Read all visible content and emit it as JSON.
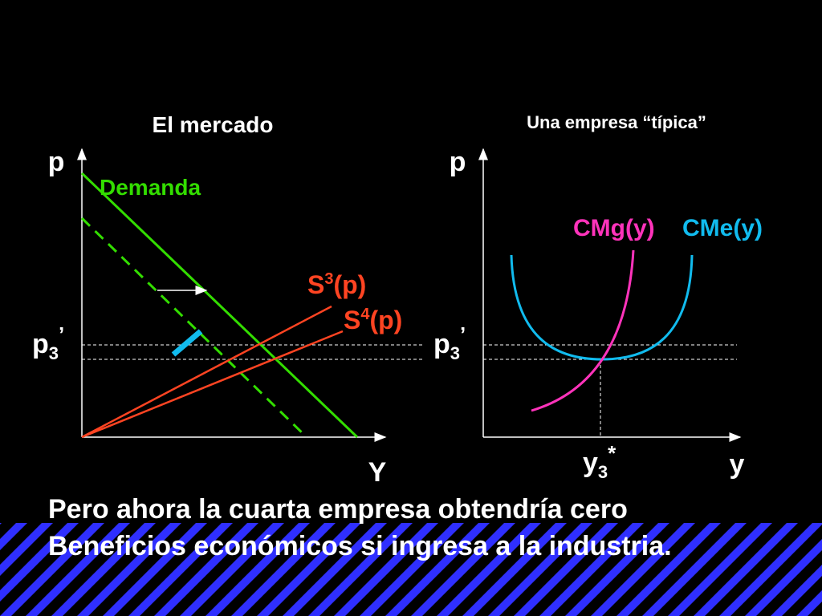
{
  "colors": {
    "background": "#000000",
    "stripe_light": "#2f2fff",
    "stripe_dark": "#000000",
    "demand": "#33dd00",
    "supply": "#ff4422",
    "cmg": "#ff33bb",
    "cme": "#11bbee",
    "shift_mark": "#11bbee",
    "text": "#ffffff"
  },
  "chart_data": [
    {
      "type": "line",
      "title": "El mercado",
      "ylabel": "p",
      "xlabel": "Y",
      "grid": false,
      "price_labels": {
        "base": "p",
        "sub": "3",
        "sup": "’"
      },
      "series": [
        {
          "name": "Demanda",
          "style": "solid",
          "color": "#33dd00"
        },
        {
          "name": "",
          "style": "dashed",
          "color": "#33dd00"
        },
        {
          "name": "S3(p)",
          "label": {
            "base": "S",
            "sup": "3",
            "rest": "(p)"
          },
          "color": "#ff4422"
        },
        {
          "name": "S4(p)",
          "label": {
            "base": "S",
            "sup": "4",
            "rest": "(p)"
          },
          "color": "#ff4422"
        }
      ],
      "annotations": [
        "shift-arrow",
        "shift-marker"
      ]
    },
    {
      "type": "line",
      "title": "Una empresa “típica”",
      "ylabel": "p",
      "xlabel": "y",
      "grid": false,
      "price_labels": {
        "base": "p",
        "sub": "3",
        "sup": "’"
      },
      "quantity_label": {
        "base": "y",
        "sub": "3",
        "sup": "*"
      },
      "series": [
        {
          "name": "CMg(y)",
          "color": "#ff33bb"
        },
        {
          "name": "CMe(y)",
          "color": "#11bbee"
        }
      ]
    }
  ],
  "caption": {
    "line1": "Pero ahora la cuarta empresa obtendría cero",
    "line2": "Beneficios económicos si ingresa a la industria."
  }
}
